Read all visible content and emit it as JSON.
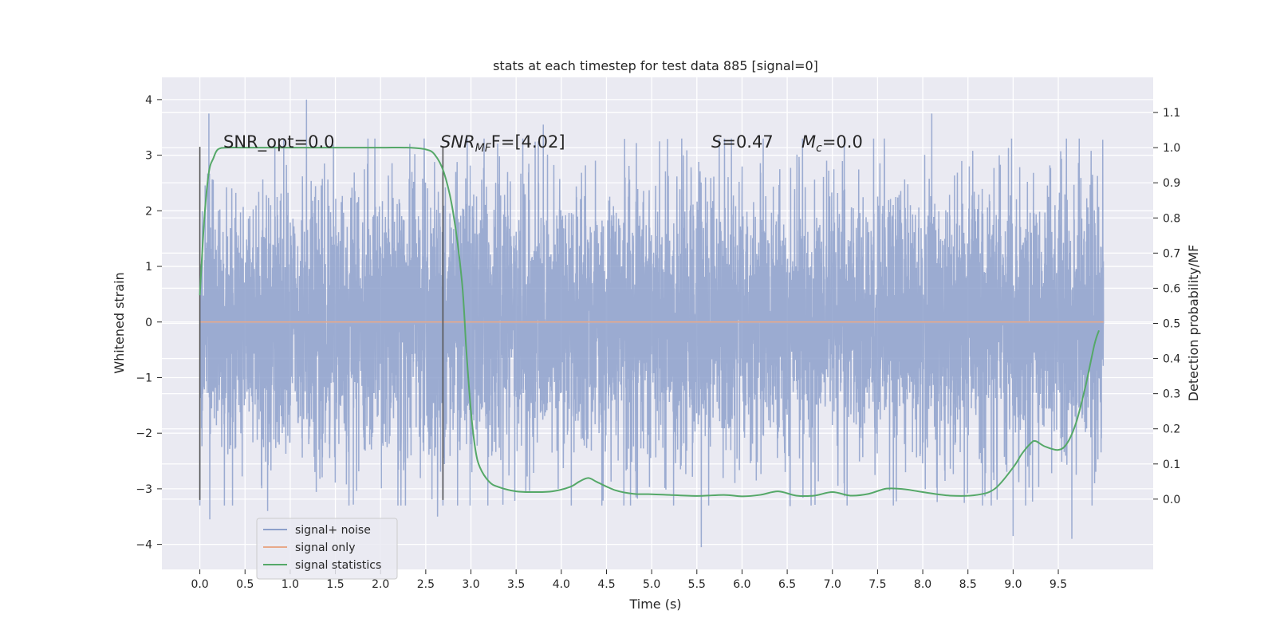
{
  "chart_data": {
    "type": "line",
    "title": "stats at each timestep for test data 885 [signal=0]",
    "xlabel": "Time (s)",
    "ylabel_left": "Whitened strain",
    "ylabel_right": "Detection probability/MF",
    "xlim": [
      -0.42,
      10.55
    ],
    "ylim_left": [
      -4.45,
      4.4
    ],
    "ylim_right": [
      -0.2,
      1.2
    ],
    "x_ticks": [
      0.0,
      0.5,
      1.0,
      1.5,
      2.0,
      2.5,
      3.0,
      3.5,
      4.0,
      4.5,
      5.0,
      5.5,
      6.0,
      6.5,
      7.0,
      7.5,
      8.0,
      8.5,
      9.0,
      9.5
    ],
    "x_tick_labels": [
      "0.0",
      "0.5",
      "1.0",
      "1.5",
      "2.0",
      "2.5",
      "3.0",
      "3.5",
      "4.0",
      "4.5",
      "5.0",
      "5.5",
      "6.0",
      "6.5",
      "7.0",
      "7.5",
      "8.0",
      "8.5",
      "9.0",
      "9.5"
    ],
    "y_left_ticks": [
      4,
      3,
      2,
      1,
      0,
      -1,
      -2,
      -3,
      -4
    ],
    "y_left_tick_labels": [
      "4",
      "3",
      "2",
      "1",
      "0",
      "−1",
      "−2",
      "−3",
      "−4"
    ],
    "y_right_ticks": [
      1.1,
      1.0,
      0.9,
      0.8,
      0.7,
      0.6,
      0.5,
      0.4,
      0.3,
      0.2,
      0.1,
      0.0
    ],
    "y_right_tick_labels": [
      "1.1",
      "1.0",
      "0.9",
      "0.8",
      "0.7",
      "0.6",
      "0.5",
      "0.4",
      "0.3",
      "0.2",
      "0.1",
      "0.0"
    ],
    "grid": true,
    "legend_position": "lower-left",
    "series": [
      {
        "name": "signal+ noise",
        "axis": "left",
        "color": "#8da0cb",
        "x_range": [
          0.0,
          10.0
        ],
        "typical_amplitude": 1.3,
        "notable_peaks": [
          {
            "x": 0.1,
            "y": 3.75
          },
          {
            "x": 1.18,
            "y": 4.0
          },
          {
            "x": 3.8,
            "y": 3.55
          },
          {
            "x": 8.1,
            "y": 3.75
          },
          {
            "x": 0.11,
            "y": -3.55
          },
          {
            "x": 2.63,
            "y": -3.5
          },
          {
            "x": 5.55,
            "y": -4.05
          },
          {
            "x": 9.0,
            "y": -3.85
          },
          {
            "x": 9.65,
            "y": -3.9
          },
          {
            "x": 0.75,
            "y": -3.4
          },
          {
            "x": 1.65,
            "y": -3.3
          }
        ]
      },
      {
        "name": "signal only",
        "axis": "left",
        "color": "#e8a98a",
        "x": [
          0.0,
          10.0
        ],
        "y": [
          0.0,
          0.0
        ]
      },
      {
        "name": "signal statistics",
        "axis": "right",
        "color": "#55a868",
        "x": [
          0.0,
          0.05,
          0.1,
          0.15,
          0.2,
          0.3,
          0.5,
          1.0,
          1.5,
          2.0,
          2.3,
          2.5,
          2.6,
          2.7,
          2.8,
          2.9,
          2.95,
          3.0,
          3.05,
          3.1,
          3.2,
          3.3,
          3.5,
          3.7,
          3.9,
          4.1,
          4.2,
          4.3,
          4.4,
          4.6,
          4.8,
          5.0,
          5.2,
          5.5,
          5.8,
          6.0,
          6.2,
          6.4,
          6.6,
          6.8,
          7.0,
          7.2,
          7.4,
          7.6,
          7.8,
          8.0,
          8.3,
          8.6,
          8.8,
          9.0,
          9.1,
          9.2,
          9.25,
          9.35,
          9.5,
          9.6,
          9.7,
          9.8,
          9.9,
          9.95
        ],
        "y": [
          0.58,
          0.8,
          0.93,
          0.97,
          0.995,
          1.0,
          1.0,
          1.0,
          1.0,
          1.0,
          1.0,
          0.995,
          0.98,
          0.93,
          0.82,
          0.62,
          0.42,
          0.25,
          0.14,
          0.09,
          0.05,
          0.035,
          0.022,
          0.02,
          0.022,
          0.035,
          0.05,
          0.06,
          0.048,
          0.025,
          0.015,
          0.014,
          0.012,
          0.009,
          0.012,
          0.008,
          0.012,
          0.022,
          0.01,
          0.01,
          0.02,
          0.01,
          0.015,
          0.03,
          0.028,
          0.02,
          0.01,
          0.012,
          0.03,
          0.09,
          0.13,
          0.16,
          0.165,
          0.15,
          0.14,
          0.16,
          0.22,
          0.32,
          0.44,
          0.48
        ]
      }
    ],
    "vertical_markers": [
      {
        "x": 0.0,
        "y_range": [
          -3.2,
          3.15
        ]
      },
      {
        "x": 2.69,
        "y_range": [
          -3.2,
          3.15
        ]
      }
    ],
    "annotations": [
      {
        "text": "SNR_opt=0.0",
        "x": 0.2,
        "y": 3.15
      },
      {
        "text_main": "SNR",
        "text_sub": "MF",
        "text_after": "F=[4.02]",
        "x": 2.6,
        "y": 3.15
      },
      {
        "text_main": "S",
        "text_sub": "",
        "text_after": "=0.47",
        "x": 5.62,
        "y": 3.15
      },
      {
        "text_main": "M",
        "text_sub": "c",
        "text_after": "=0.0",
        "x": 6.62,
        "y": 3.15
      }
    ]
  }
}
